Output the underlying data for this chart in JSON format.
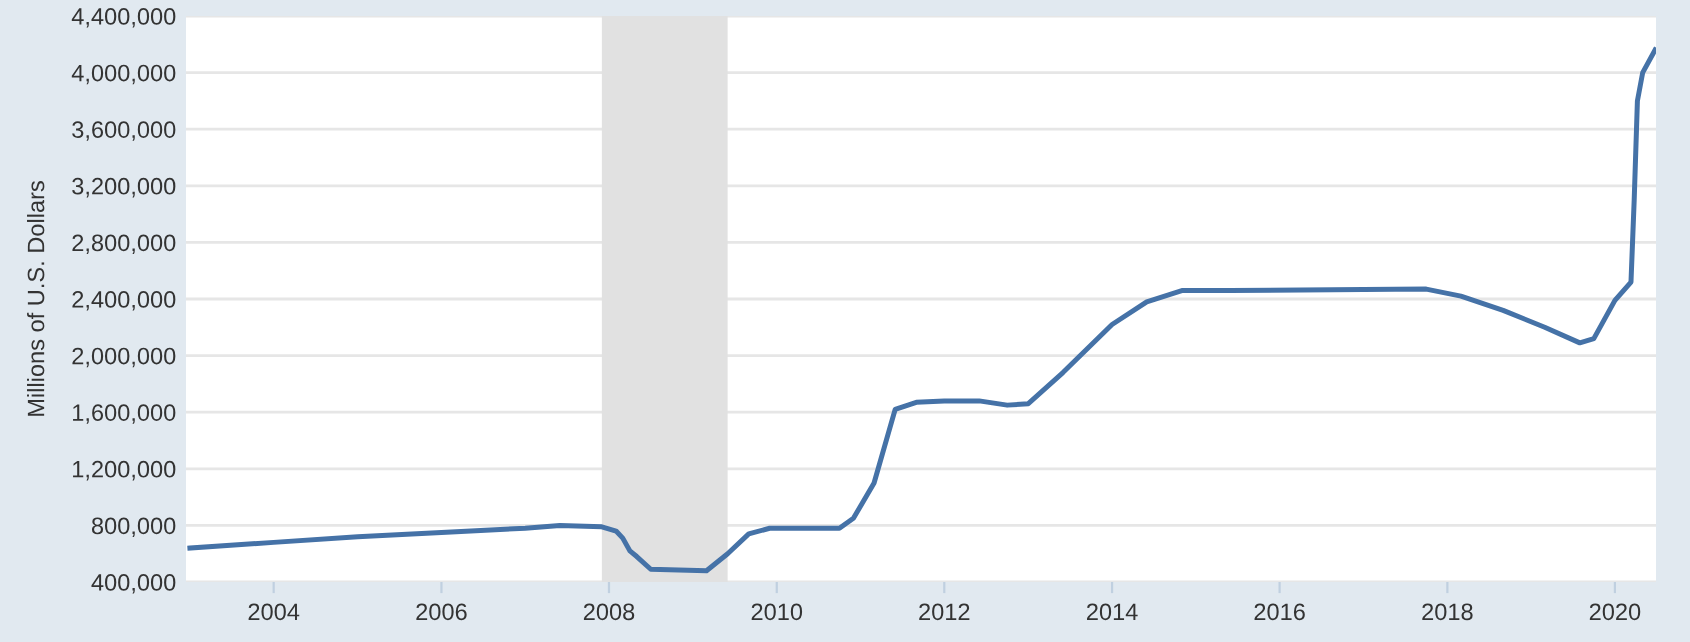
{
  "chart_data": {
    "type": "line",
    "ylabel": "Millions of U.S. Dollars",
    "x": [
      "2003-01",
      "2004-01",
      "2005-01",
      "2006-01",
      "2007-01",
      "2007-06",
      "2007-12",
      "2008-02",
      "2008-03",
      "2008-04",
      "2008-05",
      "2008-07",
      "2009-03",
      "2009-06",
      "2009-09",
      "2009-12",
      "2010-10",
      "2010-12",
      "2011-03",
      "2011-06",
      "2011-09",
      "2012-01",
      "2012-06",
      "2012-10",
      "2013-01",
      "2013-06",
      "2014-01",
      "2014-06",
      "2014-11",
      "2015-06",
      "2017-10",
      "2018-03",
      "2018-09",
      "2019-03",
      "2019-08",
      "2019-10",
      "2020-01",
      "2020-03-11",
      "2020-03-25",
      "2020-04-08",
      "2020-05-01",
      "2020-06-24"
    ],
    "series": [
      {
        "color": "#4572a7",
        "values": [
          640000,
          680000,
          720000,
          750000,
          780000,
          800000,
          790000,
          760000,
          710000,
          620000,
          580000,
          490000,
          480000,
          600000,
          740000,
          780000,
          780000,
          850000,
          1100000,
          1620000,
          1670000,
          1680000,
          1680000,
          1650000,
          1660000,
          1880000,
          2220000,
          2380000,
          2460000,
          2460000,
          2470000,
          2420000,
          2320000,
          2200000,
          2090000,
          2120000,
          2390000,
          2520000,
          3100000,
          3800000,
          4000000,
          4160000
        ]
      }
    ],
    "xlim": [
      "2002-12-15",
      "2020-06-28"
    ],
    "xticks": [
      {
        "value": "2004",
        "label": "2004"
      },
      {
        "value": "2006",
        "label": "2006"
      },
      {
        "value": "2008",
        "label": "2008"
      },
      {
        "value": "2010",
        "label": "2010"
      },
      {
        "value": "2012",
        "label": "2012"
      },
      {
        "value": "2014",
        "label": "2014"
      },
      {
        "value": "2016",
        "label": "2016"
      },
      {
        "value": "2018",
        "label": "2018"
      },
      {
        "value": "2020",
        "label": "2020"
      }
    ],
    "ylim": [
      400000,
      4400000
    ],
    "yticks": [
      {
        "value": 400000,
        "label": "400,000"
      },
      {
        "value": 800000,
        "label": "800,000"
      },
      {
        "value": 1200000,
        "label": "1,200,000"
      },
      {
        "value": 1600000,
        "label": "1,600,000"
      },
      {
        "value": 2000000,
        "label": "2,000,000"
      },
      {
        "value": 2400000,
        "label": "2,400,000"
      },
      {
        "value": 2800000,
        "label": "2,800,000"
      },
      {
        "value": 3200000,
        "label": "3,200,000"
      },
      {
        "value": 3600000,
        "label": "3,600,000"
      },
      {
        "value": 4000000,
        "label": "4,000,000"
      },
      {
        "value": 4400000,
        "label": "4,400,000"
      }
    ],
    "bands": [
      {
        "axis": "x",
        "from": "2007-12",
        "to": "2009-06",
        "color": "#e1e1e1"
      }
    ],
    "grid": "y",
    "marker": "none",
    "line_style": "solid"
  }
}
